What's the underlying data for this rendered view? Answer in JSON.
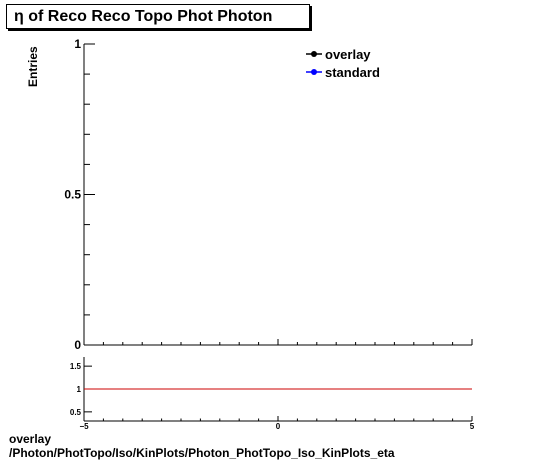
{
  "title": "η of Reco Reco Topo Phot Photon",
  "footer": {
    "line1": "overlay",
    "line2": "/Photon/PhotTopo/Iso/KinPlots/Photon_PhotTopo_Iso_KinPlots_eta"
  },
  "chart_data": [
    {
      "type": "line",
      "title": "η of Reco Reco Topo Phot Photon",
      "xlabel": "",
      "ylabel": "Entries",
      "xlim": [
        -5,
        5
      ],
      "ylim": [
        0,
        1
      ],
      "yticks": [
        {
          "value": 0,
          "label": "0"
        },
        {
          "value": 0.5,
          "label": "0.5"
        },
        {
          "value": 1,
          "label": "1"
        }
      ],
      "grid": false,
      "legend_position": "top-right",
      "series": [
        {
          "name": "overlay",
          "color": "#000000",
          "values": []
        },
        {
          "name": "standard",
          "color": "#0000ff",
          "values": []
        }
      ]
    },
    {
      "type": "line",
      "title": "",
      "xlabel": "",
      "ylabel": "",
      "xlim": [
        -5,
        5
      ],
      "ylim": [
        0.3,
        1.7
      ],
      "xticks": [
        {
          "value": -5,
          "label": "−5"
        },
        {
          "value": 0,
          "label": "0"
        },
        {
          "value": 5,
          "label": "5"
        }
      ],
      "yticks": [
        {
          "value": 0.5,
          "label": "0.5"
        },
        {
          "value": 1,
          "label": "1"
        },
        {
          "value": 1.5,
          "label": "1.5"
        }
      ],
      "grid": false,
      "reference_line": {
        "y": 1,
        "color": "#cc0000"
      }
    }
  ]
}
